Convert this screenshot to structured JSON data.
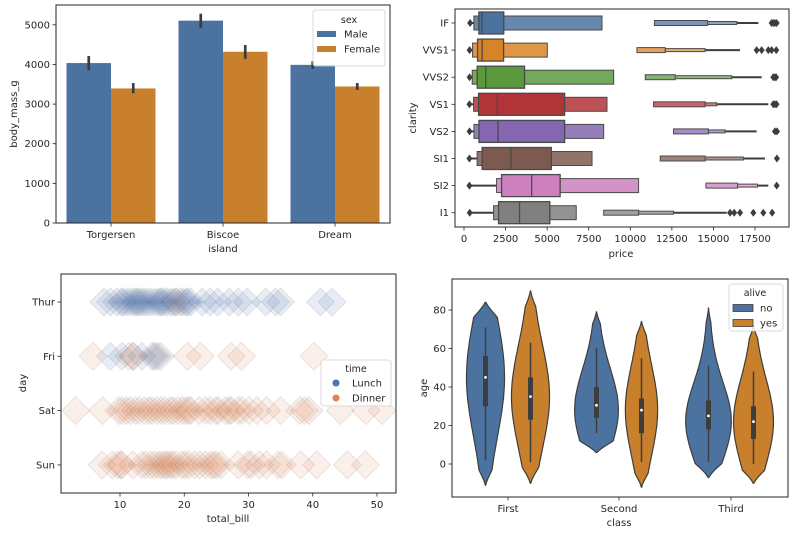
{
  "chart_data": [
    {
      "id": "penguins-bar",
      "type": "bar",
      "xlabel": "island",
      "ylabel": "body_mass_g",
      "categories": [
        "Torgersen",
        "Biscoe",
        "Dream"
      ],
      "ylim": [
        0,
        5500
      ],
      "yticks": [
        0,
        1000,
        2000,
        3000,
        4000,
        5000
      ],
      "series": [
        {
          "name": "Male",
          "color": "#4c72a0",
          "values": [
            4035,
            5105,
            3990
          ],
          "ci": [
            [
              3850,
              4215
            ],
            [
              4920,
              5280
            ],
            [
              3890,
              4085
            ]
          ]
        },
        {
          "name": "Female",
          "color": "#c8802d",
          "values": [
            3395,
            4320,
            3445
          ],
          "ci": [
            [
              3275,
              3530
            ],
            [
              4140,
              4490
            ],
            [
              3355,
              3530
            ]
          ]
        }
      ],
      "legend": {
        "title": "sex",
        "placement": "top-right"
      }
    },
    {
      "id": "diamonds-boxen",
      "type": "boxen",
      "xlabel": "price",
      "ylabel": "clarity",
      "xlim": [
        -1000,
        19500
      ],
      "xticks": [
        0,
        2500,
        5000,
        7500,
        10000,
        12500,
        15000,
        17500
      ],
      "categories": [
        "IF",
        "VVS1",
        "VVS2",
        "VS1",
        "VS2",
        "SI1",
        "SI2",
        "I1"
      ],
      "colors": [
        "#4c72a0",
        "#d88327",
        "#5a9a3d",
        "#b03438",
        "#8467b0",
        "#7d5a4f",
        "#cc80be",
        "#808080"
      ],
      "boxes": [
        {
          "median": 1080,
          "levels": [
            [
              895,
              2390
            ],
            [
              8300,
              11450
            ],
            [
              14650,
              16400
            ],
            [
              17700
            ]
          ],
          "min": 369,
          "max": 18806,
          "outliers": [
            18500,
            18600,
            18700,
            18806
          ]
        },
        {
          "median": 1090,
          "levels": [
            [
              815,
              2380
            ],
            [
              5010,
              10400
            ],
            [
              12100,
              14500
            ],
            [
              16600
            ]
          ],
          "min": 336,
          "max": 18777,
          "outliers": [
            17600,
            17900,
            18300,
            18500,
            18777
          ]
        },
        {
          "median": 1310,
          "levels": [
            [
              795,
              3640
            ],
            [
              9000,
              10900
            ],
            [
              12700,
              16100
            ],
            [
              17900
            ]
          ],
          "min": 336,
          "max": 18768,
          "outliers": [
            18600,
            18700,
            18768
          ]
        },
        {
          "median": 2000,
          "levels": [
            [
              875,
              6050
            ],
            [
              8600,
              11400
            ],
            [
              14500,
              15200
            ],
            [
              18300
            ]
          ],
          "min": 327,
          "max": 18795,
          "outliers": [
            18600,
            18700,
            18795
          ]
        },
        {
          "median": 2050,
          "levels": [
            [
              900,
              6050
            ],
            [
              8400,
              12600
            ],
            [
              14700,
              15700
            ],
            [
              17600
            ]
          ],
          "min": 334,
          "max": 18823,
          "outliers": [
            18700,
            18823
          ]
        },
        {
          "median": 2820,
          "levels": [
            [
              1090,
              5250
            ],
            [
              7700,
              11800
            ],
            [
              14500,
              16800
            ],
            [
              18100
            ]
          ],
          "min": 326,
          "max": 18818,
          "outliers": [
            18818
          ]
        },
        {
          "median": 4070,
          "levels": [
            [
              2260,
              5780
            ],
            [
              10500,
              14550
            ],
            [
              16450,
              17650
            ],
            [
              18300
            ]
          ],
          "min": 326,
          "max": 18804,
          "outliers": [
            18804
          ]
        },
        {
          "median": 3340,
          "levels": [
            [
              2080,
              5160
            ],
            [
              6750,
              8400
            ],
            [
              10500,
              12600
            ],
            [
              15800
            ]
          ],
          "min": 345,
          "max": 18531,
          "outliers": [
            16000,
            16250,
            16600,
            17400,
            18000,
            18531
          ]
        }
      ]
    },
    {
      "id": "tips-strip",
      "type": "scatter",
      "xlabel": "total_bill",
      "ylabel": "day",
      "xlim": [
        1,
        53
      ],
      "xticks": [
        10,
        20,
        30,
        40,
        50
      ],
      "categories": [
        "Thur",
        "Fri",
        "Sat",
        "Sun"
      ],
      "legend": {
        "title": "time",
        "placement": "center-right"
      },
      "series": [
        {
          "name": "Lunch",
          "color": "#4c72b0",
          "points": {
            "Thur": [
              7.5,
              8.5,
              9.5,
              10.2,
              10.5,
              11,
              11.5,
              12,
              12.4,
              12.7,
              13,
              13.4,
              13.8,
              14.3,
              14.8,
              15.4,
              15.9,
              16.3,
              16.5,
              16.9,
              17.3,
              17.9,
              18.3,
              18.7,
              19.4,
              19.8,
              20.3,
              20.5,
              21,
              22.8,
              24,
              25.2,
              27,
              28.4,
              29.8,
              32.7,
              34.2,
              35,
              41.2,
              43
            ],
            "Fri": [
              8.5,
              10.3,
              12,
              13.4,
              15,
              15.4,
              16.3
            ],
            "Sat": [],
            "Sun": []
          }
        },
        {
          "name": "Dinner",
          "color": "#dd8452",
          "points": {
            "Thur": [
              18.8
            ],
            "Fri": [
              5.8,
              11.4,
              12.1,
              15.8,
              20.5,
              22.5,
              27.3,
              28.9,
              40.2
            ],
            "Sat": [
              3.1,
              7.3,
              9.8,
              10.3,
              11,
              11.6,
              12.4,
              13,
              13.8,
              14.5,
              15,
              15.7,
              16.4,
              17,
              17.8,
              18.3,
              19,
              19.7,
              20.2,
              20.7,
              21,
              22.3,
              23.3,
              24,
              24.9,
              25.3,
              26.4,
              27,
              27.3,
              28.4,
              29,
              30.1,
              31.3,
              32.8,
              35,
              38,
              38.7,
              39.4,
              44.3,
              48.3,
              50.8
            ],
            "Sun": [
              7.2,
              8.8,
              9.6,
              10.1,
              10.3,
              12,
              13.4,
              14,
              14.8,
              15.4,
              16,
              16.5,
              17,
              17.3,
              17.8,
              18.2,
              18.7,
              19.6,
              20.1,
              20.7,
              21.6,
              22.4,
              23.3,
              24.1,
              24.6,
              25,
              25.7,
              28.4,
              29.9,
              30.4,
              31.7,
              32.8,
              34.6,
              35.2,
              38.1,
              40.6,
              45.4,
              48.2
            ]
          }
        }
      ]
    },
    {
      "id": "titanic-violin",
      "type": "violin",
      "xlabel": "class",
      "ylabel": "age",
      "ylim": [
        -17,
        97
      ],
      "yticks": [
        0,
        20,
        40,
        60,
        80
      ],
      "categories": [
        "First",
        "Second",
        "Third"
      ],
      "legend": {
        "title": "alive",
        "placement": "top-right"
      },
      "series": [
        {
          "name": "no",
          "color": "#4c72a0",
          "violins": [
            {
              "q1": 30,
              "median": 45,
              "q3": 56,
              "whisker_lo": 2,
              "whisker_hi": 71,
              "min": -11,
              "max": 84,
              "mode": 45,
              "peak": 1.0
            },
            {
              "q1": 24,
              "median": 30.5,
              "q3": 40,
              "whisker_lo": 16,
              "whisker_hi": 60,
              "min": 6,
              "max": 79,
              "mode": 28,
              "peak": 1.15
            },
            {
              "q1": 18,
              "median": 25,
              "q3": 33,
              "whisker_lo": 1,
              "whisker_hi": 51,
              "min": -7,
              "max": 81,
              "mode": 22,
              "peak": 1.2
            }
          ]
        },
        {
          "name": "yes",
          "color": "#c8802d",
          "violins": [
            {
              "q1": 23,
              "median": 35,
              "q3": 45,
              "whisker_lo": 1,
              "whisker_hi": 63,
              "min": -10,
              "max": 90,
              "mode": 35,
              "peak": 1.0
            },
            {
              "q1": 16,
              "median": 28,
              "q3": 34,
              "whisker_lo": 1,
              "whisker_hi": 55,
              "min": -12,
              "max": 74,
              "mode": 28,
              "peak": 0.85
            },
            {
              "q1": 13,
              "median": 22,
              "q3": 30,
              "whisker_lo": 0,
              "whisker_hi": 48,
              "min": -10,
              "max": 72,
              "mode": 22,
              "peak": 1.05
            }
          ]
        }
      ]
    }
  ]
}
